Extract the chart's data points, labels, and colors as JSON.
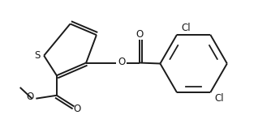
{
  "bg_color": "#ffffff",
  "line_color": "#1a1a1a",
  "line_width": 1.4,
  "figsize": [
    3.34,
    1.42
  ],
  "dpi": 100,
  "xlim": [
    0,
    334
  ],
  "ylim": [
    0,
    142
  ]
}
